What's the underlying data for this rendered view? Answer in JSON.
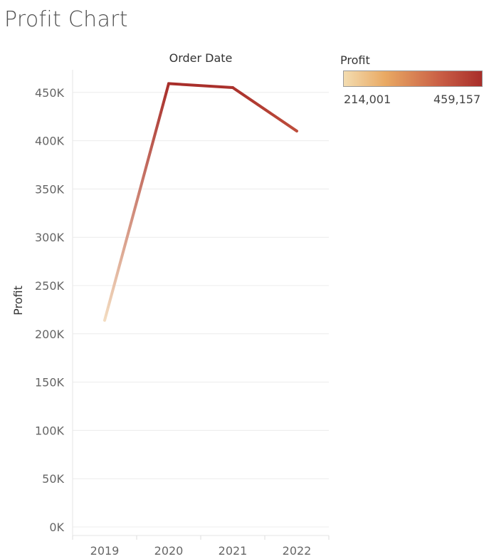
{
  "title": "Profit Chart",
  "legend": {
    "title": "Profit",
    "min_label": "214,001",
    "max_label": "459,157",
    "min_value": 214001,
    "max_value": 459157,
    "colors": [
      "#f3dcb0",
      "#e9a963",
      "#c95e45",
      "#a82e2a"
    ]
  },
  "chart_data": {
    "type": "line",
    "title": "Profit Chart",
    "xlabel": "Order Date",
    "ylabel": "Profit",
    "categories": [
      "2019",
      "2020",
      "2021",
      "2022"
    ],
    "series": [
      {
        "name": "Profit",
        "values": [
          214001,
          459157,
          455000,
          410000
        ]
      }
    ],
    "ylim": [
      0,
      475000
    ],
    "yticks": [
      0,
      50000,
      100000,
      150000,
      200000,
      250000,
      300000,
      350000,
      400000,
      450000
    ],
    "ytick_labels": [
      "0K",
      "50K",
      "100K",
      "150K",
      "200K",
      "250K",
      "300K",
      "350K",
      "400K",
      "450K"
    ],
    "grid": true,
    "color_encoding": "Profit"
  }
}
